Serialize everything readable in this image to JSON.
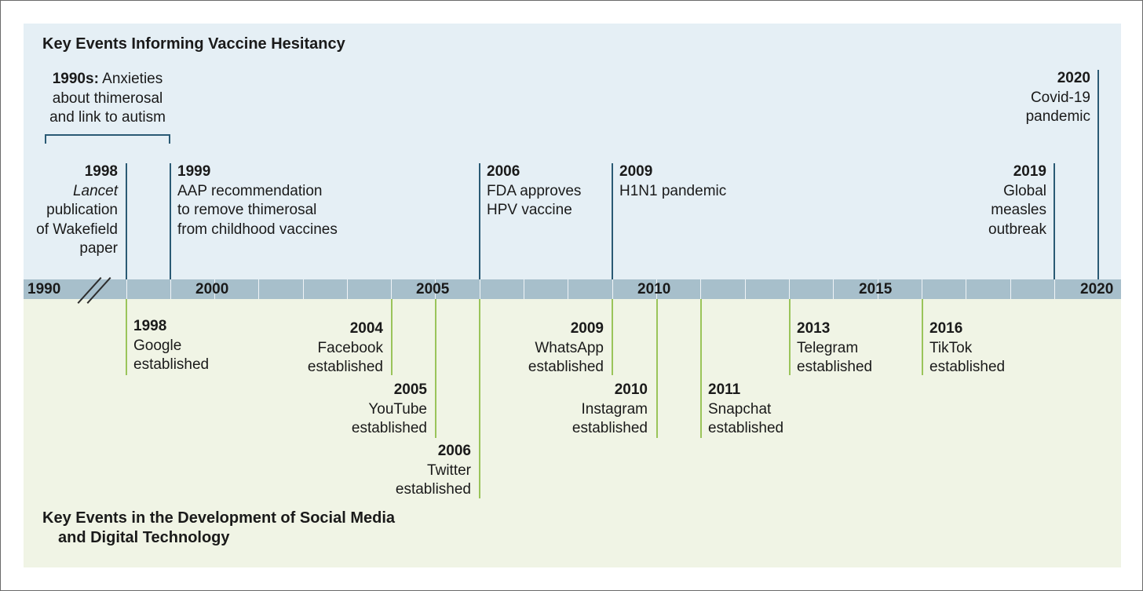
{
  "headings": {
    "top": "Key Events Informing Vaccine Hesitancy",
    "bottom_line1": "Key Events in the Development of Social Media",
    "bottom_line2": "and Digital Technology"
  },
  "axis": {
    "labels": [
      "1990",
      "2000",
      "2005",
      "2010",
      "2015",
      "2020"
    ]
  },
  "decade_note": {
    "year": "1990s:",
    "text_line1": "Anxieties",
    "text_line2": "about thimerosal",
    "text_line3": "and link to autism"
  },
  "vaccine_events": [
    {
      "year": "1998",
      "lines": [
        "Lancet",
        "publication",
        "of Wakefield",
        "paper"
      ]
    },
    {
      "year": "1999",
      "lines": [
        "AAP recommendation",
        "to remove thimerosal",
        "from childhood vaccines"
      ]
    },
    {
      "year": "2006",
      "lines": [
        "FDA approves",
        "HPV vaccine"
      ]
    },
    {
      "year": "2009",
      "lines": [
        "H1N1 pandemic"
      ]
    },
    {
      "year": "2019",
      "lines": [
        "Global",
        "measles",
        "outbreak"
      ]
    },
    {
      "year": "2020",
      "lines": [
        "Covid-19",
        "pandemic"
      ]
    }
  ],
  "tech_events": [
    {
      "year": "1998",
      "lines": [
        "Google",
        "established"
      ]
    },
    {
      "year": "2004",
      "lines": [
        "Facebook",
        "established"
      ]
    },
    {
      "year": "2005",
      "lines": [
        "YouTube",
        "established"
      ]
    },
    {
      "year": "2006",
      "lines": [
        "Twitter",
        "established"
      ]
    },
    {
      "year": "2009",
      "lines": [
        "WhatsApp",
        "established"
      ]
    },
    {
      "year": "2010",
      "lines": [
        "Instagram",
        "established"
      ]
    },
    {
      "year": "2011",
      "lines": [
        "Snapchat",
        "established"
      ]
    },
    {
      "year": "2013",
      "lines": [
        "Telegram",
        "established"
      ]
    },
    {
      "year": "2016",
      "lines": [
        "TikTok",
        "established"
      ]
    }
  ],
  "colors": {
    "vaccine_panel": "#e5eff5",
    "tech_panel": "#f0f4e5",
    "axis_band": "#a7bfcb",
    "vaccine_line": "#2a5a74",
    "tech_line": "#9ac45a"
  }
}
